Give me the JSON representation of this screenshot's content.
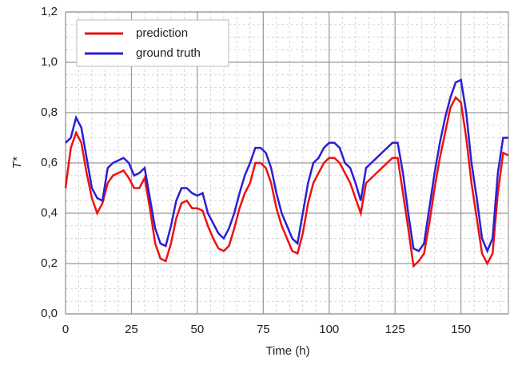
{
  "chart_data": {
    "type": "line",
    "x_label": "Time (h)",
    "y_label": "T*",
    "x": [
      0,
      2,
      4,
      6,
      8,
      10,
      12,
      14,
      16,
      18,
      20,
      22,
      24,
      26,
      28,
      30,
      32,
      34,
      36,
      38,
      40,
      42,
      44,
      46,
      48,
      50,
      52,
      54,
      56,
      58,
      60,
      62,
      64,
      66,
      68,
      70,
      72,
      74,
      76,
      78,
      80,
      82,
      84,
      86,
      88,
      90,
      92,
      94,
      96,
      98,
      100,
      102,
      104,
      106,
      108,
      110,
      112,
      114,
      116,
      118,
      120,
      122,
      124,
      126,
      128,
      130,
      132,
      134,
      136,
      138,
      140,
      142,
      144,
      146,
      148,
      150,
      152,
      154,
      156,
      158,
      160,
      162,
      164,
      166,
      168
    ],
    "series": [
      {
        "name": "prediction",
        "color": "#ee1111",
        "values": [
          0.5,
          0.66,
          0.72,
          0.68,
          0.56,
          0.46,
          0.4,
          0.44,
          0.52,
          0.55,
          0.56,
          0.57,
          0.54,
          0.5,
          0.5,
          0.54,
          0.42,
          0.28,
          0.22,
          0.21,
          0.28,
          0.38,
          0.44,
          0.45,
          0.42,
          0.42,
          0.41,
          0.35,
          0.3,
          0.26,
          0.25,
          0.27,
          0.34,
          0.42,
          0.48,
          0.52,
          0.6,
          0.6,
          0.58,
          0.52,
          0.42,
          0.35,
          0.3,
          0.25,
          0.24,
          0.32,
          0.44,
          0.52,
          0.56,
          0.6,
          0.62,
          0.62,
          0.6,
          0.56,
          0.52,
          0.46,
          0.4,
          0.52,
          0.54,
          0.56,
          0.58,
          0.6,
          0.62,
          0.62,
          0.48,
          0.34,
          0.19,
          0.21,
          0.24,
          0.36,
          0.5,
          0.62,
          0.72,
          0.82,
          0.86,
          0.84,
          0.7,
          0.52,
          0.38,
          0.24,
          0.2,
          0.24,
          0.48,
          0.64,
          0.63
        ]
      },
      {
        "name": "ground truth",
        "color": "#2a1fd6",
        "values": [
          0.68,
          0.7,
          0.78,
          0.74,
          0.62,
          0.5,
          0.46,
          0.45,
          0.58,
          0.6,
          0.61,
          0.62,
          0.6,
          0.55,
          0.56,
          0.58,
          0.46,
          0.34,
          0.28,
          0.27,
          0.35,
          0.45,
          0.5,
          0.5,
          0.48,
          0.47,
          0.48,
          0.4,
          0.36,
          0.32,
          0.3,
          0.34,
          0.4,
          0.48,
          0.55,
          0.6,
          0.66,
          0.66,
          0.64,
          0.58,
          0.48,
          0.4,
          0.35,
          0.3,
          0.28,
          0.4,
          0.52,
          0.6,
          0.62,
          0.66,
          0.68,
          0.68,
          0.66,
          0.6,
          0.58,
          0.52,
          0.45,
          0.58,
          0.6,
          0.62,
          0.64,
          0.66,
          0.68,
          0.68,
          0.56,
          0.4,
          0.26,
          0.25,
          0.28,
          0.42,
          0.56,
          0.68,
          0.78,
          0.86,
          0.92,
          0.93,
          0.8,
          0.6,
          0.46,
          0.3,
          0.25,
          0.3,
          0.56,
          0.7,
          0.7
        ]
      }
    ],
    "xlim": [
      0,
      168
    ],
    "xticks": [
      0,
      25,
      50,
      75,
      100,
      125,
      150
    ],
    "ylim": [
      0,
      1.2
    ],
    "yticks": [
      {
        "value": 0,
        "label": "0,0"
      },
      {
        "value": 0.2,
        "label": "0,2"
      },
      {
        "value": 0.4,
        "label": "0,4"
      },
      {
        "value": 0.6,
        "label": "0,6"
      },
      {
        "value": 0.8,
        "label": "0,8"
      },
      {
        "value": 1.0,
        "label": "1,0"
      },
      {
        "value": 1.2,
        "label": "1,2"
      }
    ],
    "grid": true,
    "legend": "upper left"
  }
}
